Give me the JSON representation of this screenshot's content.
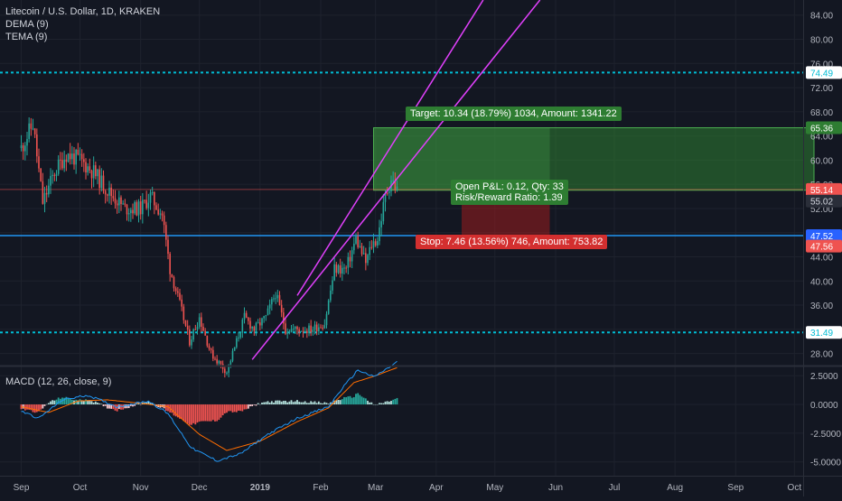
{
  "header": {
    "symbol_title": "Litecoin / U.S. Dollar, 1D, KRAKEN",
    "indicator_1": "DEMA (9)",
    "indicator_2": "TEMA (9)"
  },
  "macd_label": "MACD (12, 26, close, 9)",
  "colors": {
    "background": "#131722",
    "up": "#26a69a",
    "down": "#ef5350",
    "channel": "#e040fb",
    "support": "#00bcd4",
    "entry_line": "#2196f3",
    "target_fill": "#1b5e20",
    "stop_fill": "#4a1a1e",
    "macd_line": "#2196f3",
    "signal_line": "#ff6d00"
  },
  "chart_data": [
    {
      "type": "candlestick",
      "title": "Litecoin / U.S. Dollar, 1D, KRAKEN",
      "x_ticks": [
        "Sep",
        "Oct",
        "Nov",
        "Dec",
        "2019",
        "Feb",
        "Mar",
        "Apr",
        "May",
        "Jun",
        "Jul",
        "Aug",
        "Sep",
        "Oct"
      ],
      "y_ticks": [
        "84.00",
        "80.00",
        "76.00",
        "72.00",
        "68.00",
        "64.00",
        "60.00",
        "56.00",
        "52.00",
        "48.00",
        "44.00",
        "40.00",
        "36.00",
        "32.00",
        "28.00"
      ],
      "ylim": [
        26,
        86.5
      ],
      "anchors": [
        {
          "date": "2018-09-01",
          "close": 62
        },
        {
          "date": "2018-09-07",
          "close": 66
        },
        {
          "date": "2018-09-12",
          "close": 53
        },
        {
          "date": "2018-09-18",
          "close": 58
        },
        {
          "date": "2018-09-24",
          "close": 61
        },
        {
          "date": "2018-10-01",
          "close": 60
        },
        {
          "date": "2018-10-08",
          "close": 58
        },
        {
          "date": "2018-10-15",
          "close": 55
        },
        {
          "date": "2018-10-24",
          "close": 52
        },
        {
          "date": "2018-11-01",
          "close": 52
        },
        {
          "date": "2018-11-06",
          "close": 54
        },
        {
          "date": "2018-11-12",
          "close": 51
        },
        {
          "date": "2018-11-16",
          "close": 42
        },
        {
          "date": "2018-11-22",
          "close": 35
        },
        {
          "date": "2018-11-26",
          "close": 30
        },
        {
          "date": "2018-12-01",
          "close": 34
        },
        {
          "date": "2018-12-07",
          "close": 28
        },
        {
          "date": "2018-12-15",
          "close": 25
        },
        {
          "date": "2018-12-20",
          "close": 30
        },
        {
          "date": "2018-12-24",
          "close": 34
        },
        {
          "date": "2018-12-29",
          "close": 32
        },
        {
          "date": "2019-01-04",
          "close": 34
        },
        {
          "date": "2019-01-09",
          "close": 38
        },
        {
          "date": "2019-01-14",
          "close": 32
        },
        {
          "date": "2019-01-20",
          "close": 32
        },
        {
          "date": "2019-01-27",
          "close": 32
        },
        {
          "date": "2019-02-03",
          "close": 33
        },
        {
          "date": "2019-02-08",
          "close": 42
        },
        {
          "date": "2019-02-14",
          "close": 42
        },
        {
          "date": "2019-02-19",
          "close": 47
        },
        {
          "date": "2019-02-24",
          "close": 43
        },
        {
          "date": "2019-02-27",
          "close": 46
        },
        {
          "date": "2019-03-02",
          "close": 47
        },
        {
          "date": "2019-03-06",
          "close": 54
        },
        {
          "date": "2019-03-09",
          "close": 57
        },
        {
          "date": "2019-03-12",
          "close": 55
        }
      ]
    },
    {
      "type": "macd",
      "title": "MACD (12, 26, close, 9)",
      "y_ticks": [
        "2.5000",
        "0.0000",
        "-2.5000",
        "-5.0000"
      ],
      "ylim": [
        -6.2,
        3.3
      ],
      "macd_anchors": [
        {
          "date": "2018-09-01",
          "value": -0.6
        },
        {
          "date": "2018-09-10",
          "value": -1.2
        },
        {
          "date": "2018-09-22",
          "value": 0.4
        },
        {
          "date": "2018-10-05",
          "value": 0.8
        },
        {
          "date": "2018-10-20",
          "value": -0.2
        },
        {
          "date": "2018-11-05",
          "value": 0.3
        },
        {
          "date": "2018-11-15",
          "value": -0.8
        },
        {
          "date": "2018-11-27",
          "value": -3.8
        },
        {
          "date": "2018-12-10",
          "value": -4.9
        },
        {
          "date": "2018-12-22",
          "value": -4.3
        },
        {
          "date": "2019-01-05",
          "value": -2.6
        },
        {
          "date": "2019-01-20",
          "value": -1.2
        },
        {
          "date": "2019-02-05",
          "value": -0.2
        },
        {
          "date": "2019-02-12",
          "value": 1.4
        },
        {
          "date": "2019-02-20",
          "value": 3.0
        },
        {
          "date": "2019-02-28",
          "value": 2.4
        },
        {
          "date": "2019-03-06",
          "value": 3.0
        },
        {
          "date": "2019-03-12",
          "value": 3.7
        }
      ],
      "signal_anchors": [
        {
          "date": "2018-09-01",
          "value": -0.2
        },
        {
          "date": "2018-09-15",
          "value": -0.7
        },
        {
          "date": "2018-09-30",
          "value": 0.3
        },
        {
          "date": "2018-10-15",
          "value": 0.4
        },
        {
          "date": "2018-11-01",
          "value": 0.1
        },
        {
          "date": "2018-11-15",
          "value": -0.2
        },
        {
          "date": "2018-12-01",
          "value": -2.6
        },
        {
          "date": "2018-12-15",
          "value": -4.0
        },
        {
          "date": "2019-01-01",
          "value": -3.2
        },
        {
          "date": "2019-01-20",
          "value": -1.5
        },
        {
          "date": "2019-02-05",
          "value": -0.3
        },
        {
          "date": "2019-02-18",
          "value": 1.9
        },
        {
          "date": "2019-03-01",
          "value": 2.5
        },
        {
          "date": "2019-03-12",
          "value": 3.2
        }
      ]
    }
  ],
  "horizontal_lines": [
    {
      "name": "resistance",
      "value": 74.49,
      "style": "dashed",
      "color": "#00bcd4"
    },
    {
      "name": "entry",
      "value": 47.52,
      "style": "solid",
      "color": "#2196f3"
    },
    {
      "name": "support",
      "value": 31.49,
      "style": "dashed",
      "color": "#00bcd4"
    }
  ],
  "channel": {
    "lower": [
      {
        "date": "2018-12-28",
        "value": 27.0
      },
      {
        "date": "2019-05-24",
        "value": 86.5
      }
    ],
    "upper": [
      {
        "date": "2019-01-20",
        "value": 37.6
      },
      {
        "date": "2019-04-25",
        "value": 86.5
      }
    ]
  },
  "position": {
    "start_date": "2019-02-28",
    "end_date": "2019-10-11",
    "profit_end_date": "2019-05-29",
    "entry": 55.02,
    "target": 65.36,
    "stop": 47.56,
    "target_label": "Target: 10.34 (18.79%) 1034, Amount: 1341.22",
    "stop_label": "Stop: 7.46 (13.56%) 746, Amount: 753.82",
    "pl_label": "Open P&L: 0.12, Qty: 33",
    "rr_label": "Risk/Reward Ratio: 1.39"
  },
  "price_tags": [
    {
      "value": "74.49",
      "color": "#00bcd4",
      "text_color": "#131722",
      "kind": "outline"
    },
    {
      "value": "65.36",
      "color": "#2e7d32",
      "text_color": "#ffffff",
      "kind": "solid"
    },
    {
      "value": "55.14",
      "color": "#ef5350",
      "text_color": "#ffffff",
      "kind": "solid"
    },
    {
      "value": "55.02",
      "color": "#2a2e39",
      "text_color": "#d1d4dc",
      "kind": "solid"
    },
    {
      "value": "47.52",
      "color": "#2962ff",
      "text_color": "#ffffff",
      "kind": "solid"
    },
    {
      "value": "47.56",
      "color": "#ef5350",
      "text_color": "#ffffff",
      "kind": "solid"
    },
    {
      "value": "31.49",
      "color": "#00bcd4",
      "text_color": "#131722",
      "kind": "outline"
    }
  ]
}
